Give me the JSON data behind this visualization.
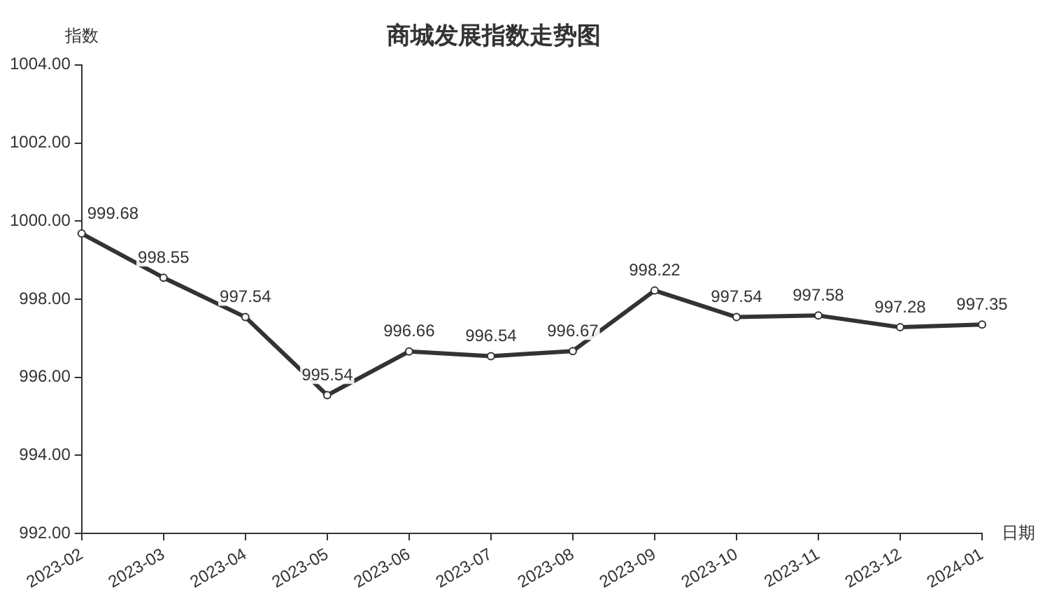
{
  "chart_data": {
    "type": "line",
    "title": "商城发展指数走势图",
    "xlabel": "日期",
    "ylabel": "指数",
    "categories": [
      "2023-02",
      "2023-03",
      "2023-04",
      "2023-05",
      "2023-06",
      "2023-07",
      "2023-08",
      "2023-09",
      "2023-10",
      "2023-11",
      "2023-12",
      "2024-01"
    ],
    "series": [
      {
        "color": "#333333",
        "values": [
          999.68,
          998.55,
          997.54,
          995.54,
          996.66,
          996.54,
          996.67,
          998.22,
          997.54,
          997.58,
          997.28,
          997.35
        ]
      }
    ],
    "ylim": [
      992,
      1004
    ],
    "yticks": [
      {
        "value": 992,
        "label": "992.00"
      },
      {
        "value": 994,
        "label": "994.00"
      },
      {
        "value": 996,
        "label": "996.00"
      },
      {
        "value": 998,
        "label": "998.00"
      },
      {
        "value": 1000,
        "label": "1000.00"
      },
      {
        "value": 1002,
        "label": "1002.00"
      },
      {
        "value": 1004,
        "label": "1004.00"
      }
    ],
    "grid": false,
    "legend": false,
    "marker": "circle",
    "line_style": "solid",
    "data_labels": true
  }
}
